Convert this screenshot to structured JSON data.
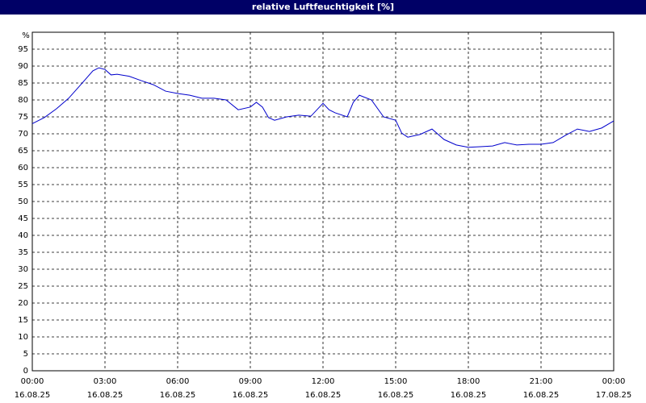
{
  "chart_data": {
    "type": "line",
    "title": "relative Luftfeuchtigkeit [%]",
    "y_label": "%",
    "x": [
      0,
      0.5,
      1,
      1.5,
      2,
      2.5,
      2.75,
      3,
      3.25,
      3.5,
      4,
      4.5,
      5,
      5.5,
      6,
      6.5,
      7,
      7.5,
      8,
      8.5,
      9,
      9.25,
      9.5,
      9.75,
      10,
      10.5,
      11,
      11.5,
      12,
      12.25,
      12.5,
      13,
      13.25,
      13.5,
      14,
      14.5,
      15,
      15.25,
      15.5,
      16,
      16.5,
      17,
      17.5,
      18,
      18.5,
      19,
      19.5,
      20,
      20.5,
      21,
      21.5,
      22,
      22.5,
      23,
      23.5,
      24
    ],
    "series": [
      {
        "name": "relative Luftfeuchtigkeit",
        "color": "#0000cc",
        "values": [
          73,
          74.8,
          77.4,
          80.5,
          84.5,
          88.6,
          89.5,
          89,
          87.4,
          87.6,
          87,
          85.7,
          84.5,
          82.6,
          81.9,
          81.4,
          80.5,
          80.5,
          80,
          77.1,
          77.9,
          79.3,
          77.9,
          74.8,
          74,
          75,
          75.5,
          75.2,
          79,
          77.1,
          76.2,
          75,
          79.3,
          81.4,
          80,
          75,
          74,
          70.2,
          69,
          69.8,
          71.4,
          68.3,
          66.7,
          66,
          66.2,
          66.4,
          67.4,
          66.7,
          66.9,
          66.9,
          67.4,
          69.5,
          71.4,
          70.7,
          71.7,
          73.8
        ]
      }
    ],
    "xlim": [
      0,
      24
    ],
    "xticks": [
      {
        "value": 0,
        "label": "00:00",
        "date": "16.08.25"
      },
      {
        "value": 3,
        "label": "03:00",
        "date": "16.08.25"
      },
      {
        "value": 6,
        "label": "06:00",
        "date": "16.08.25"
      },
      {
        "value": 9,
        "label": "09:00",
        "date": "16.08.25"
      },
      {
        "value": 12,
        "label": "12:00",
        "date": "16.08.25"
      },
      {
        "value": 15,
        "label": "15:00",
        "date": "16.08.25"
      },
      {
        "value": 18,
        "label": "18:00",
        "date": "16.08.25"
      },
      {
        "value": 21,
        "label": "21:00",
        "date": "16.08.25"
      },
      {
        "value": 24,
        "label": "00:00",
        "date": "17.08.25"
      }
    ],
    "ylim": [
      0,
      100
    ],
    "yticks": [
      0,
      5,
      10,
      15,
      20,
      25,
      30,
      35,
      40,
      45,
      50,
      55,
      60,
      65,
      70,
      75,
      80,
      85,
      90,
      95
    ],
    "grid": true
  }
}
